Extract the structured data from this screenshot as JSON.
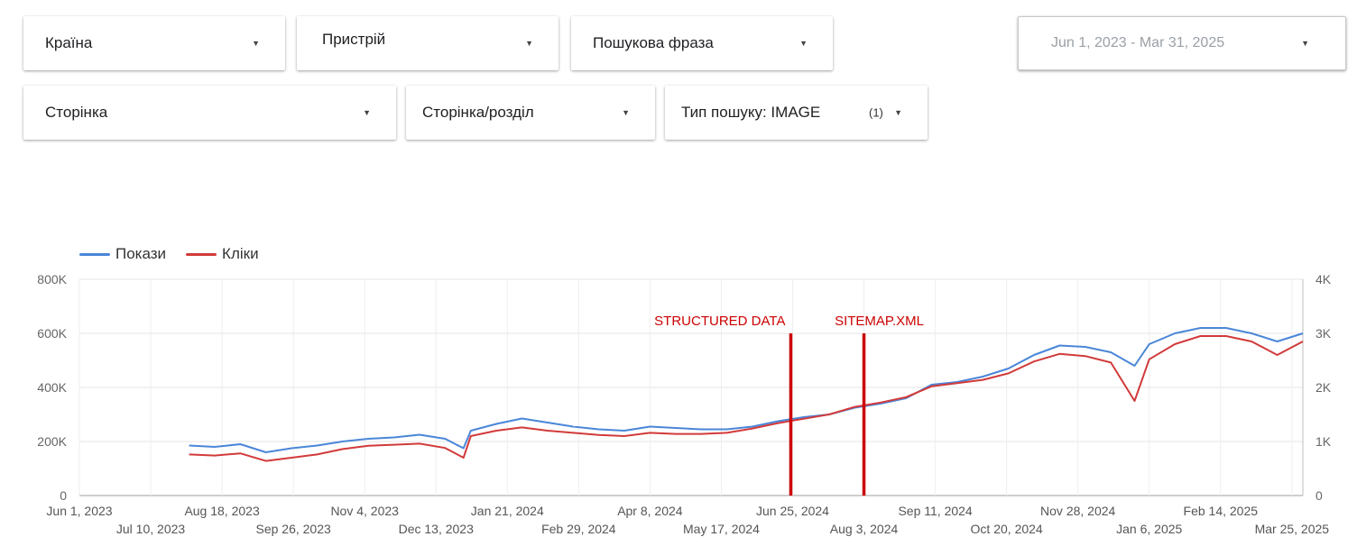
{
  "filters": {
    "country": "Країна",
    "device": "Пристрій",
    "query": "Пошукова фраза",
    "page": "Сторінка",
    "page_section": "Сторінка/розділ",
    "search_type": "Тип пошуку: IMAGE",
    "search_type_count": "(1)",
    "date_range": "Jun 1, 2023 - Mar 31, 2025"
  },
  "icons": {
    "dropdown": "caret-down-icon"
  },
  "colors": {
    "impressions": "#4a86d8",
    "clicks": "#d23a3a",
    "annotation": "#cc0000"
  },
  "chart_data": {
    "type": "line",
    "legend_position": "top-left",
    "grid": true,
    "x_start": "2023-06-01",
    "x_end": "2025-03-31",
    "left_axis": {
      "ylim": [
        0,
        800000
      ],
      "ticks": [
        "0",
        "200K",
        "400K",
        "600K",
        "800K"
      ]
    },
    "right_axis": {
      "ylim": [
        0,
        4000
      ],
      "ticks": [
        "0",
        "1K",
        "2K",
        "3K",
        "4K"
      ]
    },
    "x_ticks_top": [
      "Jun 1, 2023",
      "Aug 18, 2023",
      "Nov 4, 2023",
      "Jan 21, 2024",
      "Apr 8, 2024",
      "Jun 25, 2024",
      "Sep 11, 2024",
      "Nov 28, 2024",
      "Feb 14, 2025"
    ],
    "x_ticks_bottom": [
      "Jul 10, 2023",
      "Sep 26, 2023",
      "Dec 13, 2023",
      "Feb 29, 2024",
      "May 17, 2024",
      "Aug 3, 2024",
      "Oct 20, 2024",
      "Jan 6, 2025",
      "Mar 25, 2025"
    ],
    "annotations": [
      {
        "label": "STRUCTURED DATA",
        "x": "2024-06-24"
      },
      {
        "label": "SITEMAP.XML",
        "x": "2024-08-03"
      }
    ],
    "series": [
      {
        "name": "Покази",
        "axis": "left",
        "x": [
          "2023-07-31",
          "2023-08-14",
          "2023-08-28",
          "2023-09-11",
          "2023-09-25",
          "2023-10-09",
          "2023-10-23",
          "2023-11-06",
          "2023-11-20",
          "2023-12-04",
          "2023-12-18",
          "2023-12-28",
          "2024-01-01",
          "2024-01-15",
          "2024-01-29",
          "2024-02-12",
          "2024-02-26",
          "2024-03-11",
          "2024-03-25",
          "2024-04-08",
          "2024-04-22",
          "2024-05-06",
          "2024-05-20",
          "2024-06-03",
          "2024-06-17",
          "2024-07-01",
          "2024-07-15",
          "2024-07-29",
          "2024-08-12",
          "2024-08-26",
          "2024-09-09",
          "2024-09-23",
          "2024-10-07",
          "2024-10-21",
          "2024-11-04",
          "2024-11-18",
          "2024-12-02",
          "2024-12-16",
          "2024-12-29",
          "2025-01-06",
          "2025-01-20",
          "2025-02-03",
          "2025-02-17",
          "2025-03-03",
          "2025-03-17",
          "2025-03-31"
        ],
        "values": [
          185000,
          180000,
          190000,
          160000,
          175000,
          185000,
          200000,
          210000,
          215000,
          225000,
          210000,
          175000,
          240000,
          265000,
          285000,
          270000,
          255000,
          245000,
          240000,
          255000,
          250000,
          245000,
          245000,
          255000,
          275000,
          290000,
          300000,
          325000,
          340000,
          360000,
          410000,
          420000,
          440000,
          470000,
          520000,
          555000,
          550000,
          530000,
          480000,
          560000,
          600000,
          620000,
          620000,
          600000,
          570000,
          600000
        ]
      },
      {
        "name": "Кліки",
        "axis": "right",
        "x": [
          "2023-07-31",
          "2023-08-14",
          "2023-08-28",
          "2023-09-11",
          "2023-09-25",
          "2023-10-09",
          "2023-10-23",
          "2023-11-06",
          "2023-11-20",
          "2023-12-04",
          "2023-12-18",
          "2023-12-28",
          "2024-01-01",
          "2024-01-15",
          "2024-01-29",
          "2024-02-12",
          "2024-02-26",
          "2024-03-11",
          "2024-03-25",
          "2024-04-08",
          "2024-04-22",
          "2024-05-06",
          "2024-05-20",
          "2024-06-03",
          "2024-06-17",
          "2024-07-01",
          "2024-07-15",
          "2024-07-29",
          "2024-08-12",
          "2024-08-26",
          "2024-09-09",
          "2024-09-23",
          "2024-10-07",
          "2024-10-21",
          "2024-11-04",
          "2024-11-18",
          "2024-12-02",
          "2024-12-16",
          "2024-12-29",
          "2025-01-06",
          "2025-01-20",
          "2025-02-03",
          "2025-02-17",
          "2025-03-03",
          "2025-03-17",
          "2025-03-31"
        ],
        "values": [
          760,
          740,
          780,
          640,
          700,
          760,
          860,
          920,
          940,
          960,
          880,
          700,
          1100,
          1200,
          1260,
          1200,
          1160,
          1120,
          1100,
          1160,
          1140,
          1140,
          1160,
          1240,
          1340,
          1420,
          1500,
          1640,
          1720,
          1820,
          2020,
          2080,
          2140,
          2260,
          2480,
          2620,
          2580,
          2460,
          1750,
          2520,
          2800,
          2950,
          2950,
          2850,
          2600,
          2850
        ]
      }
    ]
  }
}
